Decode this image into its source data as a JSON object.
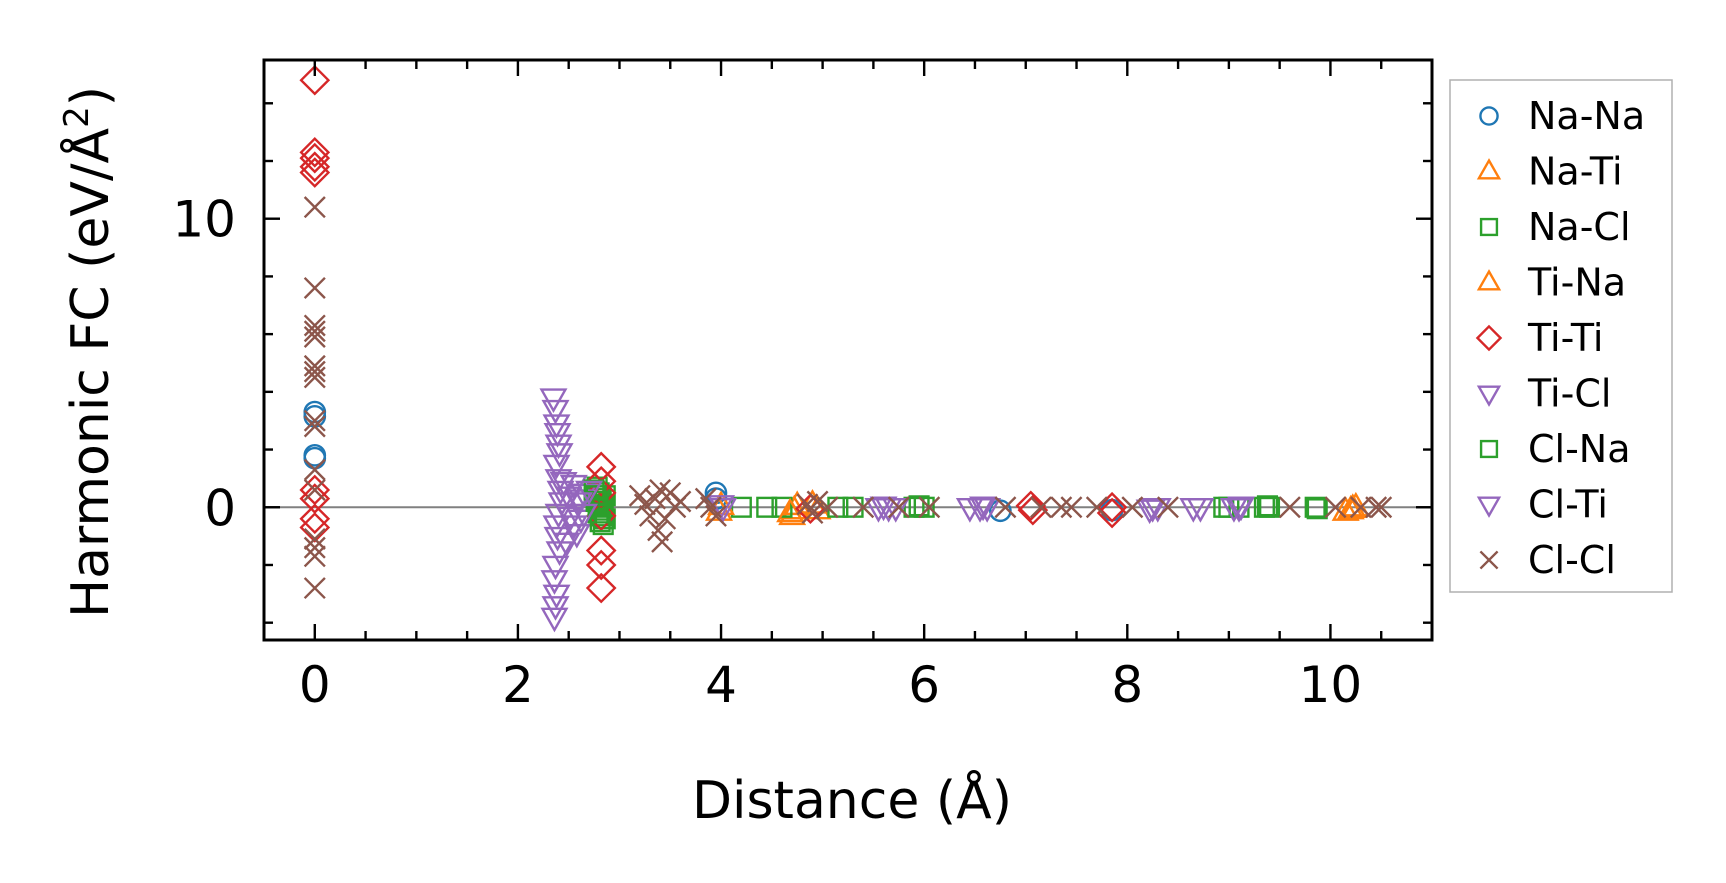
{
  "chart_data": {
    "type": "scatter",
    "title": "",
    "xlabel": "Distance (Å)",
    "ylabel_main": "Harmonic FC (eV/Å",
    "ylabel_sup": "2",
    "ylabel_close": ")",
    "xlim": [
      -0.5,
      11.0
    ],
    "ylim": [
      -4.6,
      15.5
    ],
    "x_ticks": [
      0,
      2,
      4,
      6,
      8,
      10
    ],
    "y_ticks": [
      0,
      10
    ],
    "x_minor_step": 0.5,
    "y_minor_step": 2,
    "zero_line": true,
    "grid": false,
    "legend_position": "outside-right",
    "series": [
      {
        "name": "Na-Na",
        "marker": "circle",
        "color": "#1f77b4",
        "points": [
          [
            0,
            3.3
          ],
          [
            0,
            3.15
          ],
          [
            0,
            1.8
          ],
          [
            0,
            1.7
          ],
          [
            3.95,
            0.5
          ],
          [
            3.95,
            0.3
          ],
          [
            6.75,
            -0.12
          ],
          [
            7.85,
            -0.1
          ]
        ]
      },
      {
        "name": "Na-Ti",
        "marker": "triangle-up",
        "color": "#ff7f0e",
        "points": [
          [
            3.98,
            -0.15
          ],
          [
            4.7,
            -0.3
          ],
          [
            4.72,
            -0.1
          ],
          [
            4.75,
            0.05
          ],
          [
            4.95,
            -0.1
          ],
          [
            10.15,
            -0.15
          ],
          [
            10.2,
            -0.1
          ],
          [
            10.25,
            0.0
          ]
        ]
      },
      {
        "name": "Na-Cl",
        "marker": "square",
        "color": "#2ca02c",
        "points": [
          [
            2.78,
            0.7
          ],
          [
            2.8,
            0.5
          ],
          [
            2.82,
            0.3
          ],
          [
            2.84,
            0.1
          ],
          [
            2.8,
            -0.1
          ],
          [
            2.82,
            -0.3
          ],
          [
            2.84,
            -0.6
          ],
          [
            2.86,
            0.4
          ],
          [
            2.86,
            -0.4
          ],
          [
            4.2,
            0.0
          ],
          [
            4.45,
            0.0
          ],
          [
            4.6,
            0.0
          ],
          [
            5.15,
            0.0
          ],
          [
            5.3,
            0.0
          ],
          [
            5.9,
            0.0
          ],
          [
            6.0,
            0.0
          ],
          [
            8.95,
            0.0
          ],
          [
            9.0,
            0.0
          ],
          [
            9.1,
            0.0
          ],
          [
            9.35,
            0.0
          ],
          [
            9.4,
            0.0
          ],
          [
            9.85,
            0.0
          ]
        ]
      },
      {
        "name": "Ti-Na",
        "marker": "triangle-up",
        "color": "#ff7f0e",
        "points": [
          [
            4.0,
            0.05
          ],
          [
            4.68,
            -0.2
          ],
          [
            4.9,
            0.1
          ],
          [
            10.22,
            -0.05
          ]
        ]
      },
      {
        "name": "Ti-Ti",
        "marker": "diamond",
        "color": "#d62728",
        "points": [
          [
            0,
            14.8
          ],
          [
            0,
            12.3
          ],
          [
            0,
            12.1
          ],
          [
            0,
            11.8
          ],
          [
            0,
            11.6
          ],
          [
            0,
            0.6
          ],
          [
            0,
            0.3
          ],
          [
            0,
            -0.4
          ],
          [
            0,
            -0.7
          ],
          [
            2.82,
            1.4
          ],
          [
            2.82,
            0.9
          ],
          [
            2.82,
            0.5
          ],
          [
            2.82,
            -0.3
          ],
          [
            2.82,
            -1.5
          ],
          [
            2.82,
            -2.0
          ],
          [
            2.82,
            -2.8
          ],
          [
            4.88,
            -0.05
          ],
          [
            7.05,
            0.05
          ],
          [
            7.07,
            -0.1
          ],
          [
            7.85,
            0.0
          ],
          [
            7.85,
            -0.2
          ]
        ]
      },
      {
        "name": "Ti-Cl",
        "marker": "triangle-down",
        "color": "#9467bd",
        "points": [
          [
            2.35,
            3.8
          ],
          [
            2.37,
            3.4
          ],
          [
            2.38,
            2.9
          ],
          [
            2.39,
            2.6
          ],
          [
            2.4,
            2.2
          ],
          [
            2.41,
            1.9
          ],
          [
            2.38,
            1.5
          ],
          [
            2.4,
            1.0
          ],
          [
            2.42,
            0.6
          ],
          [
            2.43,
            0.2
          ],
          [
            2.4,
            -0.2
          ],
          [
            2.38,
            -0.6
          ],
          [
            2.39,
            -1.0
          ],
          [
            2.41,
            -1.5
          ],
          [
            2.37,
            -2.0
          ],
          [
            2.36,
            -2.5
          ],
          [
            2.38,
            -3.0
          ],
          [
            2.37,
            -3.4
          ],
          [
            2.36,
            -3.8
          ],
          [
            2.55,
            0.8
          ],
          [
            2.6,
            0.3
          ],
          [
            2.62,
            -0.4
          ],
          [
            2.58,
            -0.9
          ],
          [
            2.65,
            0.5
          ],
          [
            4.0,
            0.1
          ],
          [
            5.55,
            0.0
          ],
          [
            5.65,
            0.0
          ],
          [
            5.72,
            0.0
          ],
          [
            6.45,
            0.0
          ],
          [
            6.55,
            0.0
          ],
          [
            6.62,
            0.0
          ],
          [
            8.25,
            0.0
          ],
          [
            8.3,
            0.0
          ],
          [
            8.65,
            0.0
          ],
          [
            8.72,
            0.0
          ],
          [
            9.05,
            0.0
          ],
          [
            9.1,
            0.0
          ]
        ]
      },
      {
        "name": "Cl-Na",
        "marker": "square",
        "color": "#2ca02c",
        "points": [
          [
            2.75,
            0.6
          ],
          [
            2.77,
            0.2
          ],
          [
            2.79,
            -0.2
          ],
          [
            2.81,
            -0.5
          ],
          [
            2.77,
            0.4
          ],
          [
            2.79,
            0.0
          ],
          [
            5.95,
            0.05
          ],
          [
            9.38,
            0.05
          ],
          [
            9.87,
            -0.05
          ]
        ]
      },
      {
        "name": "Cl-Ti",
        "marker": "triangle-down",
        "color": "#9467bd",
        "points": [
          [
            2.45,
            0.9
          ],
          [
            2.5,
            0.4
          ],
          [
            2.52,
            -0.3
          ],
          [
            2.48,
            -1.2
          ],
          [
            2.55,
            -0.6
          ],
          [
            2.6,
            0.2
          ],
          [
            2.65,
            -0.2
          ],
          [
            2.7,
            0.6
          ],
          [
            4.02,
            0.0
          ],
          [
            5.6,
            0.05
          ],
          [
            6.58,
            0.05
          ],
          [
            8.22,
            -0.05
          ],
          [
            9.12,
            0.05
          ]
        ]
      },
      {
        "name": "Cl-Cl",
        "marker": "x",
        "color": "#8c564b",
        "points": [
          [
            0,
            10.4
          ],
          [
            0,
            7.6
          ],
          [
            0,
            6.3
          ],
          [
            0,
            6.1
          ],
          [
            0,
            5.9
          ],
          [
            0,
            4.9
          ],
          [
            0,
            4.7
          ],
          [
            0,
            4.5
          ],
          [
            0,
            3.0
          ],
          [
            0,
            2.8
          ],
          [
            0,
            1.3
          ],
          [
            0,
            0.6
          ],
          [
            0,
            -1.1
          ],
          [
            0,
            -1.4
          ],
          [
            0,
            -1.7
          ],
          [
            0,
            -2.8
          ],
          [
            3.2,
            0.4
          ],
          [
            3.25,
            0.1
          ],
          [
            3.3,
            -0.3
          ],
          [
            3.35,
            0.3
          ],
          [
            3.4,
            0.6
          ],
          [
            3.45,
            -0.4
          ],
          [
            3.5,
            0.5
          ],
          [
            3.55,
            0.0
          ],
          [
            3.38,
            -0.8
          ],
          [
            3.42,
            -1.2
          ],
          [
            3.6,
            0.2
          ],
          [
            3.85,
            0.3
          ],
          [
            3.9,
            0.0
          ],
          [
            3.95,
            -0.3
          ],
          [
            4.85,
            0.1
          ],
          [
            4.9,
            -0.2
          ],
          [
            4.95,
            0.2
          ],
          [
            5.05,
            0.0
          ],
          [
            5.4,
            0.0
          ],
          [
            5.75,
            0.0
          ],
          [
            6.05,
            0.0
          ],
          [
            6.8,
            0.0
          ],
          [
            7.15,
            0.0
          ],
          [
            7.35,
            0.0
          ],
          [
            7.45,
            0.0
          ],
          [
            7.7,
            0.0
          ],
          [
            8.05,
            0.0
          ],
          [
            8.4,
            0.0
          ],
          [
            9.6,
            0.0
          ],
          [
            10.05,
            0.0
          ],
          [
            10.3,
            0.0
          ],
          [
            10.45,
            0.0
          ],
          [
            10.5,
            0.0
          ]
        ]
      }
    ]
  }
}
